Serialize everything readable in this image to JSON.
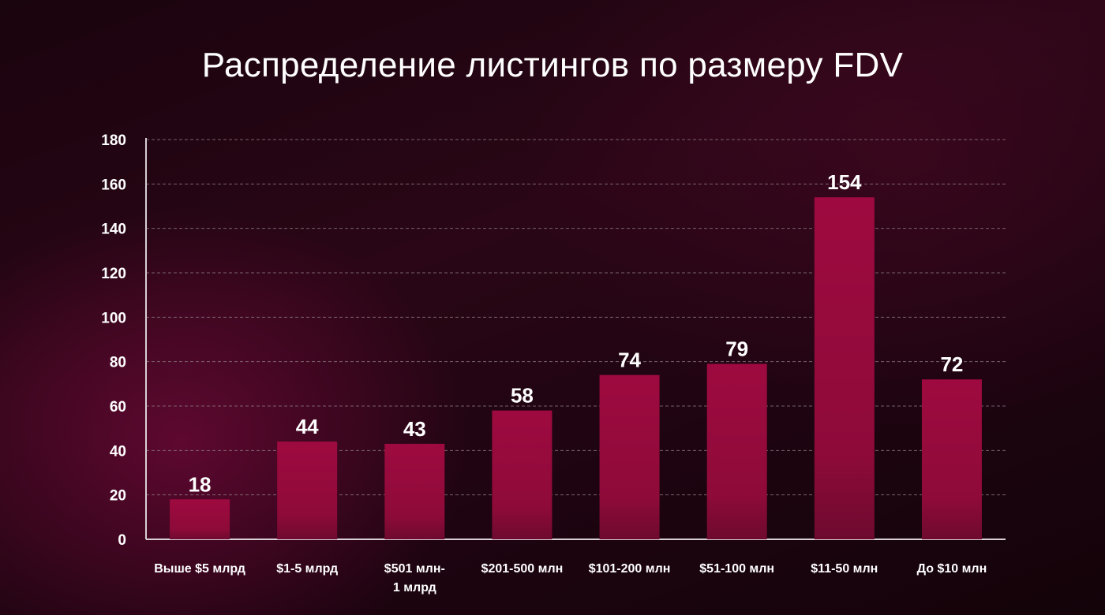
{
  "title": "Распределение листингов по размеру FDV",
  "colors": {
    "bar": "#9b0a3d",
    "bar_bottom": "#6b0a2e",
    "grid": "#8a7a80",
    "axis": "#d8d0d4",
    "text": "#ffffff"
  },
  "chart_data": {
    "type": "bar",
    "title": "Распределение листингов по размеру FDV",
    "xlabel": "",
    "ylabel": "",
    "ylim": [
      0,
      180
    ],
    "yticks": [
      "0",
      "20",
      "40",
      "60",
      "80",
      "100",
      "120",
      "140",
      "160",
      "180"
    ],
    "grid": true,
    "legend": "none",
    "categories": [
      [
        "Выше $5 млрд"
      ],
      [
        "$1-5 млрд"
      ],
      [
        "$501 млн-",
        "1 млрд"
      ],
      [
        "$201-500 млн"
      ],
      [
        "$101-200 млн"
      ],
      [
        "$51-100 млн"
      ],
      [
        "$11-50 млн"
      ],
      [
        "До $10 млн"
      ]
    ],
    "values": [
      18,
      44,
      43,
      58,
      74,
      79,
      154,
      72
    ],
    "value_labels": [
      "18",
      "44",
      "43",
      "58",
      "74",
      "79",
      "154",
      "72"
    ]
  }
}
